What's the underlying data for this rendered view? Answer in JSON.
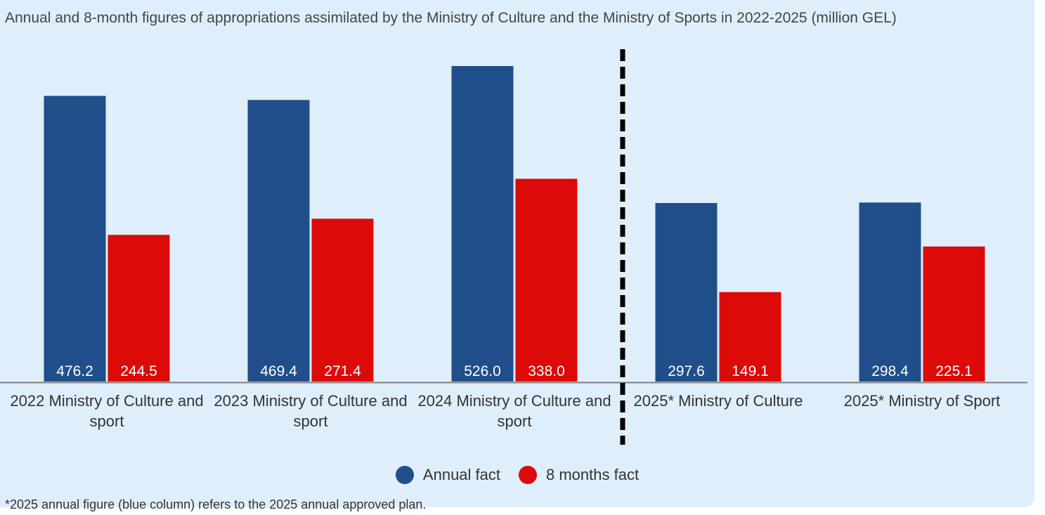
{
  "chart_data": {
    "type": "bar",
    "title": "Annual and 8-month figures of appropriations assimilated by the Ministry of Culture and the Ministry of Sports in 2022-2025 (million GEL)",
    "categories": [
      "2022 Ministry of Culture and sport",
      "2023 Ministry of Culture and sport",
      "2024 Ministry of Culture and sport",
      "2025* Ministry of Culture",
      "2025* Ministry of Sport"
    ],
    "series": [
      {
        "name": "Annual fact",
        "color": "#1f4e8a",
        "values": [
          476.2,
          469.4,
          526.0,
          297.6,
          298.4
        ],
        "labels": [
          "476.2",
          "469.4",
          "526.0",
          "297.6",
          "298.4"
        ]
      },
      {
        "name": "8 months fact",
        "color": "#dd0a0a",
        "values": [
          244.5,
          271.4,
          338.0,
          149.1,
          225.1
        ],
        "labels": [
          "244.5",
          "271.4",
          "338.0",
          "149.1",
          "225.1"
        ]
      }
    ],
    "ylim": [
      0,
      560
    ],
    "grid": false,
    "legend_position": "bottom",
    "divider": "dashed vertical line between 2024 and 2025 groups"
  },
  "footnote": "*2025 annual figure (blue column) refers to the 2025 annual approved plan."
}
